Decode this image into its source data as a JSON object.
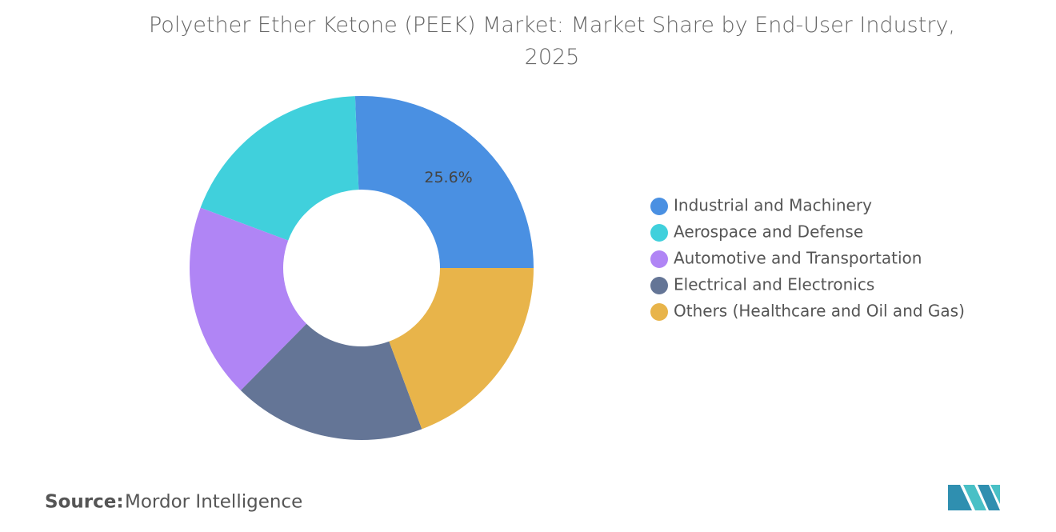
{
  "chart_data": {
    "type": "donut",
    "title": "Polyether Ether Ketone (PEEK) Market: Market Share by End-User Industry, 2025",
    "categories": [
      "Industrial and Machinery",
      "Aerospace and Defense",
      "Automotive and Transportation",
      "Electrical and Electronics",
      "Others (Healthcare and Oil and Gas)"
    ],
    "values": [
      25.6,
      18.7,
      18.3,
      18.1,
      19.3
    ],
    "value_labels": [
      "25.6%",
      null,
      null,
      null,
      null
    ],
    "colors": [
      "#4a90e2",
      "#40d0dc",
      "#b085f5",
      "#647596",
      "#e8b44a"
    ],
    "legend": "right",
    "source_label": "Source:",
    "source": "Mordor Intelligence"
  }
}
